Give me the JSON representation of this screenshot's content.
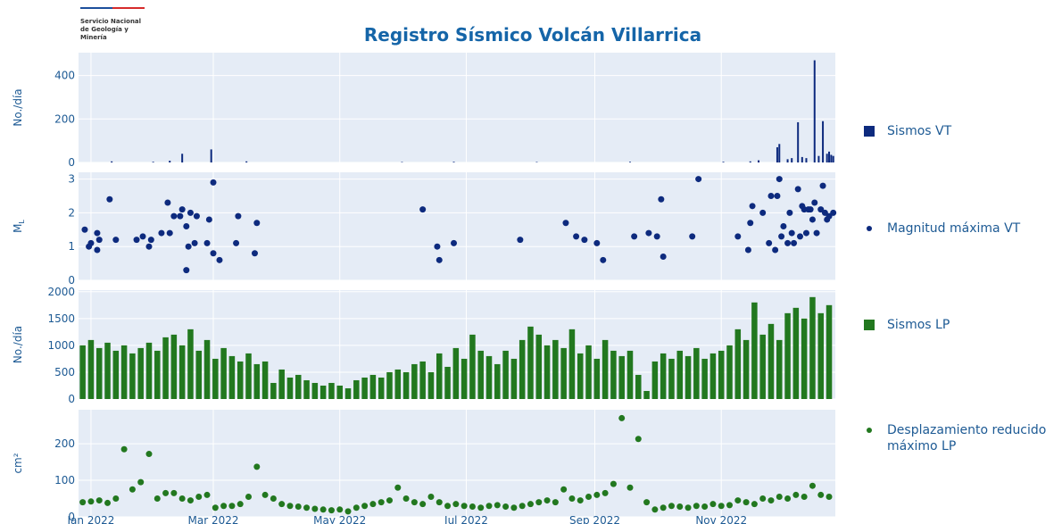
{
  "title": "Registro Sísmico Volcán Villarrica",
  "logo": [
    "Servicio Nacional",
    "de Geología y",
    "Minería"
  ],
  "xaxis": {
    "xlim": [
      -6,
      359
    ],
    "xticks": [
      {
        "value": 0,
        "label": "Jan 2022"
      },
      {
        "value": 59,
        "label": "Mar 2022"
      },
      {
        "value": 120,
        "label": "May 2022"
      },
      {
        "value": 181,
        "label": "Jul 2022"
      },
      {
        "value": 243,
        "label": "Sep 2022"
      },
      {
        "value": 304,
        "label": "Nov 2022"
      }
    ]
  },
  "chart_data": [
    {
      "type": "bar",
      "ylabel": "No./día",
      "ylim": [
        0,
        505
      ],
      "yticks": [
        0,
        200,
        400
      ],
      "grid": true,
      "series": [
        {
          "name": "Sismos VT",
          "color": "#0d2a7e",
          "x": [
            10,
            30,
            38,
            44,
            58,
            75,
            150,
            175,
            215,
            260,
            305,
            318,
            322,
            331,
            332,
            336,
            338,
            341,
            343,
            345,
            349,
            351,
            353,
            355,
            356,
            357,
            358
          ],
          "values": [
            5,
            3,
            8,
            40,
            60,
            5,
            2,
            3,
            2,
            3,
            3,
            5,
            10,
            70,
            85,
            15,
            20,
            185,
            25,
            20,
            470,
            30,
            190,
            40,
            50,
            35,
            30
          ]
        }
      ]
    },
    {
      "type": "scatter",
      "ylabel": "M",
      "ylabel_sub": "L",
      "ylim": [
        0,
        3.2
      ],
      "yticks": [
        0,
        1,
        2,
        3
      ],
      "grid": true,
      "series": [
        {
          "name": "Magnitud máxima VT",
          "color": "#0d2a7e",
          "x": [
            -3,
            -1,
            0,
            3,
            3,
            4,
            9,
            12,
            22,
            25,
            28,
            29,
            34,
            37,
            38,
            40,
            43,
            44,
            46,
            46,
            47,
            48,
            50,
            51,
            56,
            57,
            59,
            59,
            62,
            70,
            71,
            79,
            80,
            160,
            167,
            168,
            175,
            207,
            229,
            234,
            238,
            244,
            247,
            262,
            269,
            273,
            275,
            276,
            290,
            293,
            312,
            317,
            318,
            319,
            324,
            327,
            328,
            330,
            331,
            332,
            333,
            334,
            336,
            337,
            338,
            339,
            341,
            342,
            343,
            344,
            345,
            346,
            347,
            348,
            349,
            350,
            352,
            353,
            354,
            355,
            356,
            358
          ],
          "values": [
            1.5,
            1.0,
            1.1,
            1.4,
            0.9,
            1.2,
            2.4,
            1.2,
            1.2,
            1.3,
            1.0,
            1.2,
            1.4,
            2.3,
            1.4,
            1.9,
            1.9,
            2.1,
            1.6,
            0.3,
            1.0,
            2.0,
            1.1,
            1.9,
            1.1,
            1.8,
            2.9,
            0.8,
            0.6,
            1.1,
            1.9,
            0.8,
            1.7,
            2.1,
            1.0,
            0.6,
            1.1,
            1.2,
            1.7,
            1.3,
            1.2,
            1.1,
            0.6,
            1.3,
            1.4,
            1.3,
            2.4,
            0.7,
            1.3,
            3.0,
            1.3,
            0.9,
            1.7,
            2.2,
            2.0,
            1.1,
            2.5,
            0.9,
            2.5,
            3.0,
            1.3,
            1.6,
            1.1,
            2.0,
            1.4,
            1.1,
            2.7,
            1.3,
            2.2,
            2.1,
            1.4,
            2.1,
            2.1,
            1.8,
            2.3,
            1.4,
            2.1,
            2.8,
            2.0,
            1.8,
            1.9,
            2.0
          ]
        }
      ]
    },
    {
      "type": "bar",
      "ylabel": "No./día",
      "ylim": [
        0,
        2030
      ],
      "yticks": [
        0,
        500,
        1000,
        1500,
        2000
      ],
      "grid": true,
      "series": [
        {
          "name": "Sismos LP",
          "color": "#22781f",
          "x": [
            -4,
            0,
            4,
            8,
            12,
            16,
            20,
            24,
            28,
            32,
            36,
            40,
            44,
            48,
            52,
            56,
            60,
            64,
            68,
            72,
            76,
            80,
            84,
            88,
            92,
            96,
            100,
            104,
            108,
            112,
            116,
            120,
            124,
            128,
            132,
            136,
            140,
            144,
            148,
            152,
            156,
            160,
            164,
            168,
            172,
            176,
            180,
            184,
            188,
            192,
            196,
            200,
            204,
            208,
            212,
            216,
            220,
            224,
            228,
            232,
            236,
            240,
            244,
            248,
            252,
            256,
            260,
            264,
            268,
            272,
            276,
            280,
            284,
            288,
            292,
            296,
            300,
            304,
            308,
            312,
            316,
            320,
            324,
            328,
            332,
            336,
            340,
            344,
            348,
            352,
            356
          ],
          "values": [
            1000,
            1100,
            950,
            1050,
            900,
            1000,
            850,
            950,
            1050,
            900,
            1150,
            1200,
            1000,
            1300,
            900,
            1100,
            750,
            950,
            800,
            700,
            850,
            650,
            700,
            300,
            550,
            400,
            450,
            350,
            300,
            250,
            300,
            250,
            200,
            350,
            400,
            450,
            400,
            500,
            550,
            500,
            650,
            700,
            500,
            850,
            600,
            950,
            750,
            1200,
            900,
            800,
            650,
            900,
            750,
            1100,
            1350,
            1200,
            1000,
            1100,
            950,
            1300,
            850,
            1000,
            750,
            1100,
            900,
            800,
            900,
            450,
            150,
            700,
            850,
            750,
            900,
            800,
            950,
            750,
            850,
            900,
            1000,
            1300,
            1100,
            1800,
            1200,
            1400,
            1100,
            1600,
            1700,
            1500,
            1900,
            1600,
            1750
          ]
        }
      ]
    },
    {
      "type": "scatter",
      "ylabel": "cm²",
      "ylim": [
        0,
        293
      ],
      "yticks": [
        0,
        100,
        200
      ],
      "grid": true,
      "series": [
        {
          "name": "Desplazamiento reducido máximo LP",
          "color": "#22781f",
          "x": [
            -4,
            0,
            4,
            8,
            12,
            16,
            20,
            24,
            28,
            32,
            36,
            40,
            44,
            48,
            52,
            56,
            60,
            64,
            68,
            72,
            76,
            80,
            84,
            88,
            92,
            96,
            100,
            104,
            108,
            112,
            116,
            120,
            124,
            128,
            132,
            136,
            140,
            144,
            148,
            152,
            156,
            160,
            164,
            168,
            172,
            176,
            180,
            184,
            188,
            192,
            196,
            200,
            204,
            208,
            212,
            216,
            220,
            224,
            228,
            232,
            236,
            240,
            244,
            248,
            252,
            256,
            260,
            264,
            268,
            272,
            276,
            280,
            284,
            288,
            292,
            296,
            300,
            304,
            308,
            312,
            316,
            320,
            324,
            328,
            332,
            336,
            340,
            344,
            348,
            352,
            356
          ],
          "values": [
            40,
            42,
            45,
            38,
            50,
            185,
            75,
            95,
            172,
            50,
            65,
            65,
            50,
            45,
            55,
            60,
            25,
            30,
            30,
            35,
            55,
            137,
            60,
            50,
            35,
            30,
            28,
            25,
            22,
            20,
            18,
            20,
            15,
            25,
            30,
            35,
            40,
            45,
            80,
            50,
            40,
            35,
            55,
            40,
            30,
            35,
            30,
            28,
            25,
            30,
            32,
            28,
            25,
            30,
            35,
            40,
            45,
            40,
            75,
            50,
            45,
            55,
            60,
            65,
            90,
            270,
            80,
            213,
            40,
            20,
            25,
            30,
            28,
            25,
            30,
            28,
            35,
            30,
            32,
            45,
            40,
            35,
            50,
            45,
            55,
            50,
            60,
            55,
            85,
            60,
            55
          ]
        }
      ]
    }
  ]
}
